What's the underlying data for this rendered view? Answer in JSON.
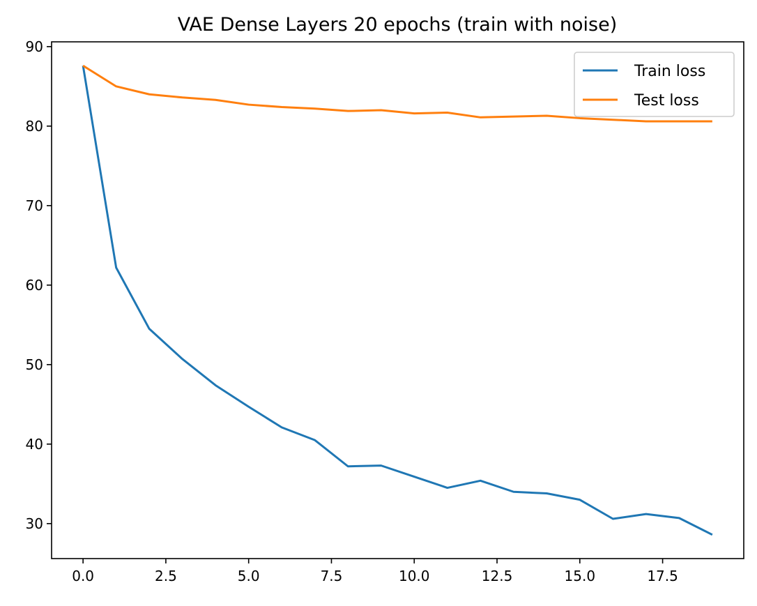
{
  "chart_data": {
    "type": "line",
    "title": "VAE Dense Layers 20 epochs (train with noise)",
    "xlabel": "",
    "ylabel": "",
    "xlim": [
      -0.95,
      19.95
    ],
    "ylim": [
      25.6,
      90.6
    ],
    "xticks": [
      0,
      2.5,
      5,
      7.5,
      10,
      12.5,
      15,
      17.5
    ],
    "xtick_labels": [
      "0.0",
      "2.5",
      "5.0",
      "7.5",
      "10.0",
      "12.5",
      "15.0",
      "17.5"
    ],
    "yticks": [
      30,
      40,
      50,
      60,
      70,
      80,
      90
    ],
    "ytick_labels": [
      "30",
      "40",
      "50",
      "60",
      "70",
      "80",
      "90"
    ],
    "grid": false,
    "legend_position": "top-right",
    "x": [
      0,
      1,
      2,
      3,
      4,
      5,
      6,
      7,
      8,
      9,
      10,
      11,
      12,
      13,
      14,
      15,
      16,
      17,
      18,
      19
    ],
    "series": [
      {
        "name": "Train loss",
        "color": "#1f77b4",
        "values": [
          87.6,
          62.2,
          54.5,
          50.7,
          47.4,
          44.7,
          42.1,
          40.5,
          37.2,
          37.3,
          35.9,
          34.5,
          35.4,
          34.0,
          33.8,
          33.0,
          30.6,
          31.2,
          30.7,
          28.6
        ]
      },
      {
        "name": "Test loss",
        "color": "#ff7f0e",
        "values": [
          87.6,
          85.0,
          84.0,
          83.6,
          83.3,
          82.7,
          82.4,
          82.2,
          81.9,
          82.0,
          81.6,
          81.7,
          81.1,
          81.2,
          81.3,
          81.0,
          80.8,
          80.6,
          80.6,
          80.6
        ]
      }
    ]
  }
}
